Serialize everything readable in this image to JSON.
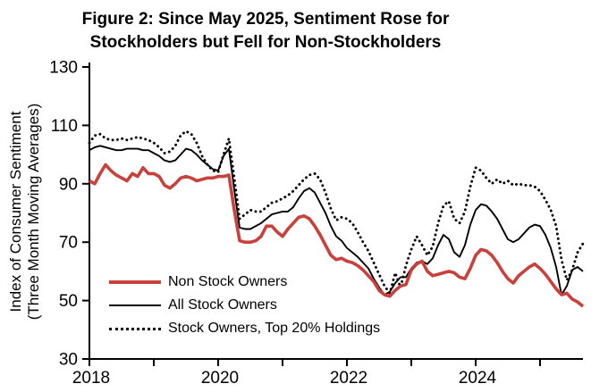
{
  "figure": {
    "title_line1": "Figure 2: Since May 2025, Sentiment Rose for",
    "title_line2": "Stockholders but Fell for Non-Stockholders",
    "y_axis_label_line1": "Index of Consumer Sentiment",
    "y_axis_label_line2": "(Three Month Moving Averages)"
  },
  "colors": {
    "non_stock_owners": "#C9413D",
    "all_stock_owners": "#000000",
    "top20_stock_owners": "#000000",
    "axis": "#000000",
    "background": "#FFFFFF"
  },
  "chart_data": {
    "type": "line",
    "title": "Figure 2: Since May 2025, Sentiment Rose for Stockholders but Fell for Non-Stockholders",
    "xlabel": "",
    "ylabel": "Index of Consumer Sentiment (Three Month Moving Averages)",
    "ylim": [
      30,
      130
    ],
    "yticks": [
      130,
      110,
      90,
      70,
      50,
      30
    ],
    "x_start": "2018-01",
    "x_end": "2025-09",
    "frequency": "monthly",
    "xtick_years": [
      2018,
      2019,
      2020,
      2021,
      2022,
      2023,
      2024,
      2025
    ],
    "xtick_labels": [
      "2018",
      "2020",
      "2022",
      "2024"
    ],
    "labeled_tick_years": [
      2018,
      2020,
      2022,
      2024
    ],
    "grid": false,
    "legend_position": "inside lower-left",
    "series": [
      {
        "name": "Non Stock Owners",
        "style": "solid",
        "color": "#C9413D",
        "stroke_width": 3.6,
        "values": [
          91,
          90,
          93.5,
          96.5,
          94.5,
          93,
          92,
          91,
          93.5,
          92.5,
          95.5,
          93.5,
          93.5,
          92.5,
          89.5,
          88.5,
          90,
          92,
          92.5,
          92,
          91,
          91.5,
          92,
          92,
          92.5,
          92.5,
          93,
          81,
          70.5,
          70,
          70,
          70.5,
          72,
          75.5,
          75.5,
          73.5,
          72,
          74.5,
          76.5,
          78.5,
          79,
          78,
          75.5,
          72.5,
          69,
          65.5,
          64,
          64.5,
          63.5,
          63,
          62,
          60.5,
          58.5,
          56.5,
          53.5,
          52,
          51.5,
          53.5,
          55,
          55.5,
          60.5,
          62.5,
          63.5,
          60,
          58.5,
          59,
          59.5,
          60,
          59.5,
          58,
          57.5,
          61,
          65.5,
          67.5,
          67,
          65.5,
          63,
          60,
          57.5,
          56,
          58.5,
          60,
          61.5,
          62.5,
          61,
          59,
          56.5,
          54,
          52,
          52.5,
          50.5,
          49.5,
          48
        ]
      },
      {
        "name": "All Stock Owners",
        "style": "solid",
        "color": "#000000",
        "stroke_width": 1.9,
        "values": [
          101.5,
          102.5,
          103,
          102.5,
          102,
          101.5,
          101.5,
          102,
          102,
          102,
          101.5,
          101.5,
          100.5,
          99.5,
          98,
          97.5,
          98,
          100,
          102,
          101.5,
          100,
          98,
          96.5,
          95,
          94.5,
          99.5,
          102,
          88,
          75,
          74.5,
          74.5,
          75.5,
          76.5,
          78,
          79.5,
          80,
          80.5,
          80.5,
          82,
          85,
          87.5,
          88.5,
          87,
          83.5,
          80,
          75.5,
          72,
          70.5,
          68,
          66.5,
          65,
          63,
          61,
          57.5,
          54.5,
          52,
          53,
          56,
          58,
          58,
          61,
          63,
          63.5,
          62.5,
          64.5,
          69,
          72.5,
          71,
          66.5,
          65,
          69,
          76,
          81,
          83,
          82.5,
          80.5,
          78,
          74.5,
          71,
          70,
          71,
          73,
          75,
          76,
          75.5,
          72.5,
          68,
          61.5,
          52,
          55,
          60.5,
          61.5,
          60
        ]
      },
      {
        "name": "Stock Owners, Top 20% Holdings",
        "style": "dotted",
        "color": "#000000",
        "stroke_width": 2.9,
        "values": [
          104,
          106.5,
          107,
          105.5,
          105,
          105,
          105.5,
          105,
          105.5,
          106,
          105.5,
          105,
          104,
          102.5,
          100.5,
          101,
          103,
          106.5,
          108,
          107,
          104,
          99.5,
          96.5,
          94.5,
          94,
          100,
          105.5,
          92,
          78,
          79.5,
          81,
          80.5,
          80.5,
          82,
          83.5,
          84,
          85,
          86,
          87.5,
          89.5,
          91.5,
          93,
          93.5,
          91.5,
          87,
          81.5,
          77.5,
          78.5,
          78,
          76.5,
          73.5,
          70,
          67,
          63,
          59,
          55,
          52.5,
          59.5,
          54.5,
          62,
          67.5,
          72,
          69,
          65.5,
          68.5,
          76.5,
          82.5,
          84,
          78,
          76.5,
          80.5,
          89,
          95.5,
          94.5,
          92,
          90,
          91.5,
          90,
          91,
          89.5,
          90,
          89.5,
          89.5,
          89,
          87.5,
          84.5,
          81,
          75.5,
          64,
          57,
          60.5,
          66.5,
          69.5
        ]
      }
    ]
  }
}
